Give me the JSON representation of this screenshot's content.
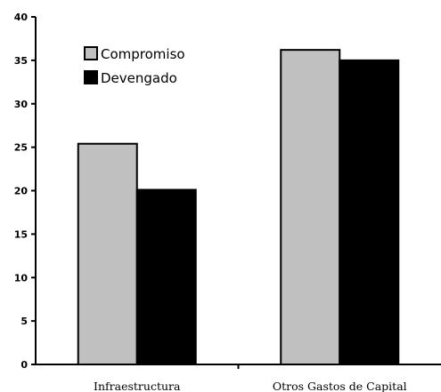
{
  "chart_data": {
    "type": "bar",
    "title": "",
    "xlabel": "",
    "ylabel": "",
    "categories": [
      "Infraestructura",
      "Otros Gastos de Capital"
    ],
    "series": [
      {
        "name": "Compromiso",
        "values": [
          25.4,
          36.2
        ],
        "color": "#c0c0c0"
      },
      {
        "name": "Devengado",
        "values": [
          20.1,
          35.0
        ],
        "color": "#000000"
      }
    ],
    "ylim": [
      0,
      40
    ],
    "yticks": [
      "0",
      "5",
      "10",
      "15",
      "20",
      "25",
      "30",
      "35",
      "40"
    ],
    "grid": false,
    "legend_position": "top-left"
  }
}
